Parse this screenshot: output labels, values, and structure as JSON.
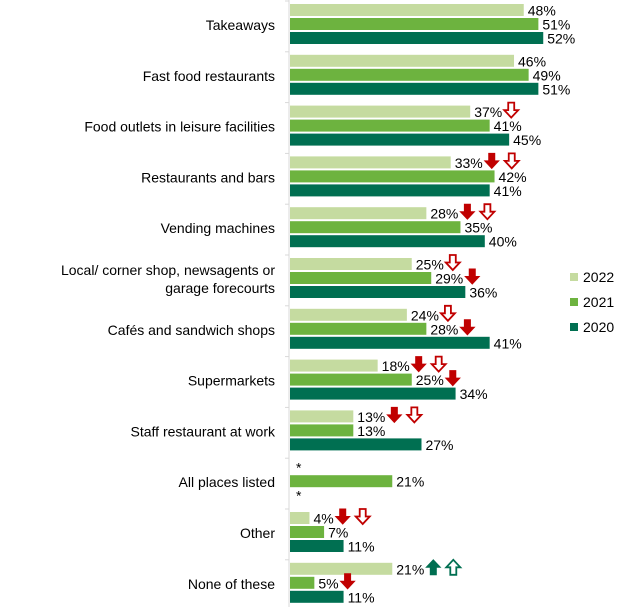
{
  "chart_data": {
    "type": "bar",
    "orientation": "horizontal",
    "categories": [
      "Takeaways",
      "Fast food restaurants",
      "Food outlets in leisure facilities",
      "Restaurants and bars",
      "Vending machines",
      "Local/ corner shop, newsagents or garage forecourts",
      "Cafés and sandwich shops",
      "Supermarkets",
      "Staff restaurant at work",
      "All places listed",
      "Other",
      "None of these"
    ],
    "category_lines": [
      [
        "Takeaways"
      ],
      [
        "Fast food restaurants"
      ],
      [
        "Food outlets in leisure facilities"
      ],
      [
        "Restaurants and bars"
      ],
      [
        "Vending machines"
      ],
      [
        "Local/ corner shop, newsagents or",
        "garage forecourts"
      ],
      [
        "Cafés and sandwich shops"
      ],
      [
        "Supermarkets"
      ],
      [
        "Staff restaurant at work"
      ],
      [
        "All places listed"
      ],
      [
        "Other"
      ],
      [
        "None of these"
      ]
    ],
    "series": [
      {
        "name": "2022",
        "color": "#c5dba0",
        "values": [
          48,
          46,
          37,
          33,
          28,
          25,
          24,
          18,
          13,
          null,
          4,
          21
        ],
        "labels": [
          "48%",
          "46%",
          "37%",
          "33%",
          "28%",
          "25%",
          "24%",
          "18%",
          "13%",
          "*",
          "4%",
          "21%"
        ]
      },
      {
        "name": "2021",
        "color": "#6db33f",
        "values": [
          51,
          49,
          41,
          42,
          35,
          29,
          28,
          25,
          13,
          21,
          7,
          5
        ],
        "labels": [
          "51%",
          "49%",
          "41%",
          "42%",
          "35%",
          "29%",
          "28%",
          "25%",
          "13%",
          "21%",
          "7%",
          "5%"
        ]
      },
      {
        "name": "2020",
        "color": "#006f51",
        "values": [
          52,
          51,
          45,
          41,
          40,
          36,
          41,
          34,
          27,
          null,
          11,
          11
        ],
        "labels": [
          "52%",
          "51%",
          "45%",
          "41%",
          "40%",
          "36%",
          "41%",
          "34%",
          "27%",
          "*",
          "11%",
          "11%"
        ]
      }
    ],
    "significance_markers": [
      {
        "category": 2,
        "series": 0,
        "markers": [
          "down-outline"
        ]
      },
      {
        "category": 3,
        "series": 0,
        "markers": [
          "down-solid",
          "down-outline"
        ]
      },
      {
        "category": 4,
        "series": 0,
        "markers": [
          "down-solid",
          "down-outline"
        ]
      },
      {
        "category": 5,
        "series": 0,
        "markers": [
          "down-outline"
        ]
      },
      {
        "category": 5,
        "series": 1,
        "markers": [
          "down-solid"
        ]
      },
      {
        "category": 6,
        "series": 0,
        "markers": [
          "down-outline"
        ]
      },
      {
        "category": 6,
        "series": 1,
        "markers": [
          "down-solid"
        ]
      },
      {
        "category": 7,
        "series": 0,
        "markers": [
          "down-solid",
          "down-outline"
        ]
      },
      {
        "category": 7,
        "series": 1,
        "markers": [
          "down-solid"
        ]
      },
      {
        "category": 8,
        "series": 0,
        "markers": [
          "down-solid",
          "down-outline"
        ]
      },
      {
        "category": 10,
        "series": 0,
        "markers": [
          "down-solid",
          "down-outline"
        ]
      },
      {
        "category": 11,
        "series": 0,
        "markers": [
          "up-solid",
          "up-outline"
        ]
      },
      {
        "category": 11,
        "series": 1,
        "markers": [
          "down-solid"
        ]
      }
    ],
    "marker_colors": {
      "down": "#c00000",
      "up": "#006f51"
    },
    "xlim": [
      0,
      60
    ],
    "legend": "right",
    "grid": false,
    "title": "",
    "xlabel": "",
    "ylabel": ""
  }
}
